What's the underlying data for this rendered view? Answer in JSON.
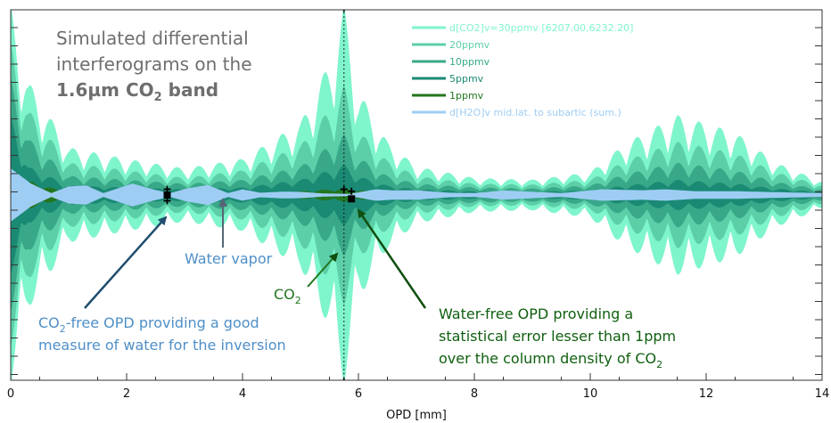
{
  "chart_data": {
    "type": "area",
    "title_lines": [
      "Simulated differential",
      "interferograms on the"
    ],
    "title_bold": {
      "pre": "1.6µm CO",
      "sub": "2",
      "post": " band"
    },
    "xlabel": "OPD [mm]",
    "xlim": [
      0,
      14
    ],
    "xticks": [
      0,
      2,
      4,
      6,
      8,
      10,
      12,
      14
    ],
    "xtick_labels": [
      "0",
      "2",
      "4",
      "6",
      "8",
      "10",
      "12",
      "14"
    ],
    "grid": false,
    "legend_position": "top-right",
    "series": [
      {
        "name": "d[CO2]v=30ppmv [6207.00,6232.20]",
        "color": "#7ff5cc",
        "envelope": [
          [
            0,
            1.0
          ],
          [
            0.3,
            0.6
          ],
          [
            1,
            0.25
          ],
          [
            2,
            0.19
          ],
          [
            3,
            0.14
          ],
          [
            4,
            0.19
          ],
          [
            5,
            0.38
          ],
          [
            5.5,
            0.7
          ],
          [
            5.75,
            1.0
          ],
          [
            6,
            0.55
          ],
          [
            6.5,
            0.28
          ],
          [
            7,
            0.15
          ],
          [
            8,
            0.09
          ],
          [
            9,
            0.08
          ],
          [
            10,
            0.12
          ],
          [
            10.6,
            0.27
          ],
          [
            11.5,
            0.42
          ],
          [
            12.5,
            0.33
          ],
          [
            13.2,
            0.17
          ],
          [
            14,
            0.07
          ]
        ]
      },
      {
        "name": "20ppmv",
        "color": "#5ccfa8",
        "envelope": [
          [
            0,
            0.8
          ],
          [
            0.3,
            0.45
          ],
          [
            1,
            0.17
          ],
          [
            2,
            0.13
          ],
          [
            3,
            0.09
          ],
          [
            4,
            0.13
          ],
          [
            5,
            0.26
          ],
          [
            5.5,
            0.45
          ],
          [
            5.75,
            0.58
          ],
          [
            6,
            0.34
          ],
          [
            6.5,
            0.18
          ],
          [
            7,
            0.1
          ],
          [
            8,
            0.06
          ],
          [
            9,
            0.055
          ],
          [
            10,
            0.08
          ],
          [
            10.6,
            0.18
          ],
          [
            11.5,
            0.28
          ],
          [
            12.5,
            0.22
          ],
          [
            13.2,
            0.12
          ],
          [
            14,
            0.05
          ]
        ]
      },
      {
        "name": "10ppmv",
        "color": "#38a888",
        "envelope": [
          [
            0,
            0.62
          ],
          [
            0.3,
            0.3
          ],
          [
            1,
            0.1
          ],
          [
            2,
            0.08
          ],
          [
            3,
            0.06
          ],
          [
            4,
            0.08
          ],
          [
            5,
            0.15
          ],
          [
            5.5,
            0.26
          ],
          [
            5.75,
            0.32
          ],
          [
            6,
            0.2
          ],
          [
            6.5,
            0.1
          ],
          [
            7,
            0.06
          ],
          [
            8,
            0.04
          ],
          [
            9,
            0.035
          ],
          [
            10,
            0.05
          ],
          [
            10.6,
            0.11
          ],
          [
            11.5,
            0.17
          ],
          [
            12.5,
            0.13
          ],
          [
            13.2,
            0.07
          ],
          [
            14,
            0.03
          ]
        ]
      },
      {
        "name": "5ppmv",
        "color": "#1a8a74",
        "envelope": [
          [
            0,
            0.42
          ],
          [
            0.3,
            0.15
          ],
          [
            1,
            0.05
          ],
          [
            2,
            0.04
          ],
          [
            3,
            0.03
          ],
          [
            4,
            0.04
          ],
          [
            5,
            0.08
          ],
          [
            5.5,
            0.13
          ],
          [
            5.75,
            0.16
          ],
          [
            6,
            0.1
          ],
          [
            6.5,
            0.05
          ],
          [
            7,
            0.03
          ],
          [
            8,
            0.02
          ],
          [
            9,
            0.018
          ],
          [
            10,
            0.025
          ],
          [
            10.6,
            0.05
          ],
          [
            11.5,
            0.08
          ],
          [
            12.5,
            0.06
          ],
          [
            13.2,
            0.035
          ],
          [
            14,
            0.015
          ]
        ]
      },
      {
        "name": "1ppmv",
        "color": "#22761f",
        "envelope": [
          [
            0,
            0.1
          ],
          [
            1,
            0.012
          ],
          [
            2,
            0.01
          ],
          [
            4,
            0.01
          ],
          [
            5,
            0.02
          ],
          [
            5.75,
            0.035
          ],
          [
            6,
            0.025
          ],
          [
            7,
            0.008
          ],
          [
            10,
            0.006
          ],
          [
            11.5,
            0.02
          ],
          [
            14,
            0.004
          ]
        ]
      },
      {
        "name": "d[H2O]v mid.lat. to subartic (sum.)",
        "color": "#9ecdf4",
        "envelope": [
          [
            0,
            0.14
          ],
          [
            0.35,
            0.06
          ],
          [
            0.7,
            0.01
          ],
          [
            1,
            0.045
          ],
          [
            1.3,
            0.05
          ],
          [
            1.6,
            0.01
          ],
          [
            2.1,
            0.06
          ],
          [
            2.45,
            0.03
          ],
          [
            2.75,
            0.01
          ],
          [
            3.05,
            0.035
          ],
          [
            3.4,
            0.052
          ],
          [
            3.75,
            0.01
          ],
          [
            4,
            0.03
          ],
          [
            4.3,
            0.012
          ],
          [
            4.7,
            0.018
          ],
          [
            5.05,
            0.016
          ],
          [
            5.4,
            0.008
          ],
          [
            5.85,
            0.006
          ],
          [
            6.3,
            0.03
          ],
          [
            6.6,
            0.024
          ],
          [
            7,
            0.025
          ],
          [
            7.55,
            0.012
          ],
          [
            8,
            0.01
          ],
          [
            8.5,
            0.024
          ],
          [
            9,
            0.017
          ],
          [
            9.5,
            0.01
          ],
          [
            10.2,
            0.03
          ],
          [
            10.9,
            0.025
          ],
          [
            11.3,
            0.03
          ],
          [
            11.8,
            0.02
          ],
          [
            12.5,
            0.02
          ],
          [
            13.2,
            0.015
          ],
          [
            14,
            0.01
          ]
        ]
      }
    ],
    "markers": [
      {
        "x": 2.7,
        "y": 0.03,
        "style": "plus"
      },
      {
        "x": 2.7,
        "y": 0.0,
        "style": "square"
      },
      {
        "x": 2.7,
        "y": -0.03,
        "style": "plus"
      },
      {
        "x": 5.75,
        "y": 0.98,
        "style": "plus"
      },
      {
        "x": 5.75,
        "y": -0.98,
        "style": "plus"
      },
      {
        "x": 5.75,
        "y": 0.03,
        "style": "plus"
      },
      {
        "x": 5.88,
        "y": 0.02,
        "style": "plus"
      },
      {
        "x": 5.88,
        "y": -0.02,
        "style": "square"
      }
    ],
    "dotted_line_x": 5.75,
    "annotations": {
      "water_vapor": "Water vapor",
      "co2": {
        "pre": "CO",
        "sub": "2"
      },
      "co2_free": {
        "line1_pre": "CO",
        "line1_sub": "2",
        "line1_post": "-free OPD providing a good",
        "line2": "measure of water for the inversion"
      },
      "water_free": {
        "line1": "Water-free OPD providing a",
        "line2": "statistical error lesser than 1ppm",
        "line3_pre": "over the column density of CO",
        "line3_sub": "2"
      }
    }
  }
}
